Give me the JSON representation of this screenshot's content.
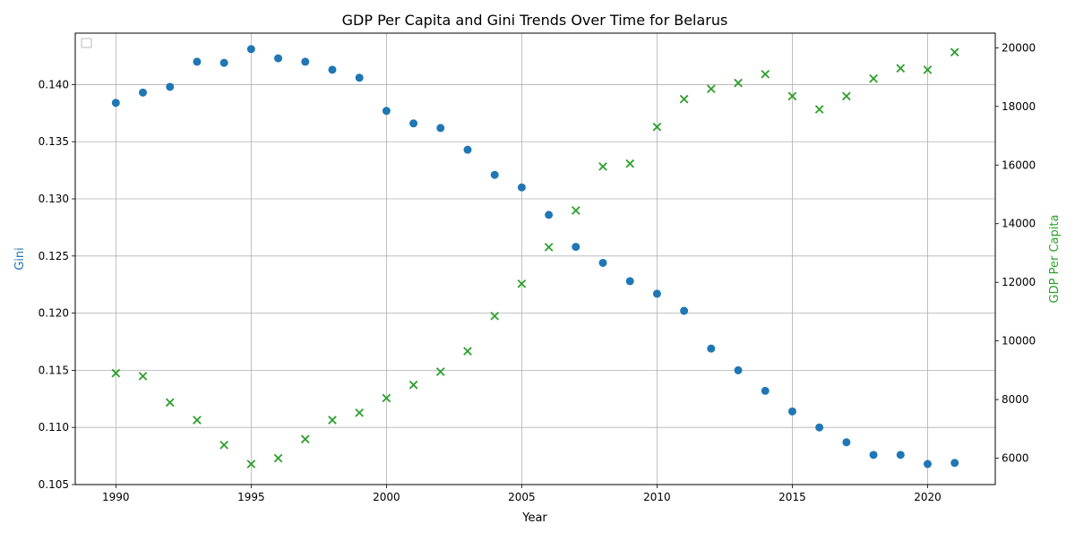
{
  "chart_data": {
    "type": "scatter",
    "title": "GDP Per Capita and Gini Trends Over Time for Belarus",
    "xlabel": "Year",
    "ylabel_left": "Gini",
    "ylabel_right": "GDP Per Capita",
    "xlim": [
      1988.5,
      2022.5
    ],
    "ylim_left": [
      0.105,
      0.1445
    ],
    "ylim_right": [
      5100,
      20500
    ],
    "x_ticks": [
      1990,
      1995,
      2000,
      2005,
      2010,
      2015,
      2020
    ],
    "y_left_ticks": [
      "0.105",
      "0.110",
      "0.115",
      "0.120",
      "0.125",
      "0.130",
      "0.135",
      "0.140"
    ],
    "y_right_ticks": [
      "6000",
      "8000",
      "10000",
      "12000",
      "14000",
      "16000",
      "18000",
      "20000"
    ],
    "grid": true,
    "legend": "top-left (empty)",
    "colors": {
      "gini": "#1f77b4",
      "gdp": "#2ca02c"
    },
    "x": [
      1990,
      1991,
      1992,
      1993,
      1994,
      1995,
      1996,
      1997,
      1998,
      1999,
      2000,
      2001,
      2002,
      2003,
      2004,
      2005,
      2006,
      2007,
      2008,
      2009,
      2010,
      2011,
      2012,
      2013,
      2014,
      2015,
      2016,
      2017,
      2018,
      2019,
      2020,
      2021
    ],
    "series": [
      {
        "axis": "left",
        "marker": "circle",
        "values": [
          0.1384,
          0.1393,
          0.1398,
          0.142,
          0.1419,
          0.1431,
          0.1423,
          0.142,
          0.1413,
          0.1406,
          0.1377,
          0.1366,
          0.1362,
          0.1343,
          0.1321,
          0.131,
          0.1286,
          0.1258,
          0.1244,
          0.1228,
          0.1217,
          0.1202,
          0.1169,
          0.115,
          0.1132,
          0.1114,
          0.11,
          0.1087,
          0.1076,
          0.1076,
          0.1068,
          0.1069
        ]
      },
      {
        "axis": "right",
        "marker": "x",
        "values": [
          8900,
          8800,
          7900,
          7300,
          6450,
          5800,
          6000,
          6650,
          7300,
          7550,
          8050,
          8500,
          8950,
          9650,
          10850,
          11950,
          13200,
          14450,
          15950,
          16050,
          17300,
          18250,
          18600,
          18800,
          19100,
          18350,
          17900,
          18350,
          18950,
          19300,
          19250,
          19850
        ]
      }
    ]
  }
}
